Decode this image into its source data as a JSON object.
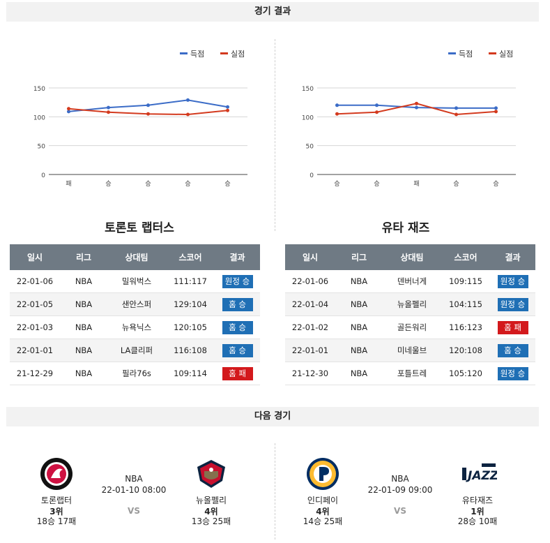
{
  "results_header": "경기 결과",
  "next_header": "다음 경기",
  "legend": {
    "score": "득점",
    "conceded": "실점"
  },
  "colors": {
    "score": "#3b6cc7",
    "conceded": "#d33a1e",
    "win": "#1f6fb5",
    "lose": "#d3191c"
  },
  "chart_data": [
    {
      "type": "line",
      "categories": [
        "패",
        "승",
        "승",
        "승",
        "승"
      ],
      "series": [
        {
          "name": "득점",
          "values": [
            109,
            116,
            120,
            129,
            117
          ]
        },
        {
          "name": "실점",
          "values": [
            114,
            108,
            105,
            104,
            111
          ]
        }
      ],
      "yticks": [
        "0",
        "50",
        "100",
        "150"
      ],
      "ylim": [
        0,
        150
      ],
      "legend": "top-right",
      "grid": true
    },
    {
      "type": "line",
      "categories": [
        "승",
        "승",
        "패",
        "승",
        "승"
      ],
      "series": [
        {
          "name": "득점",
          "values": [
            120,
            120,
            116,
            115,
            115
          ]
        },
        {
          "name": "실점",
          "values": [
            105,
            108,
            123,
            104,
            109
          ]
        }
      ],
      "yticks": [
        "0",
        "50",
        "100",
        "150"
      ],
      "ylim": [
        0,
        150
      ],
      "legend": "top-right",
      "grid": true
    }
  ],
  "columns": [
    "일시",
    "리그",
    "상대팀",
    "스코어",
    "결과"
  ],
  "teams": [
    {
      "title": "토론토 랩터스",
      "rows": [
        {
          "date": "22-01-06",
          "league": "NBA",
          "opponent": "밀워벅스",
          "score": "111:117",
          "result": "원정 승",
          "win": true
        },
        {
          "date": "22-01-05",
          "league": "NBA",
          "opponent": "샌안스퍼",
          "score": "129:104",
          "result": "홈 승",
          "win": true
        },
        {
          "date": "22-01-03",
          "league": "NBA",
          "opponent": "뉴욕닉스",
          "score": "120:105",
          "result": "홈 승",
          "win": true
        },
        {
          "date": "22-01-01",
          "league": "NBA",
          "opponent": "LA클리퍼",
          "score": "116:108",
          "result": "홈 승",
          "win": true
        },
        {
          "date": "21-12-29",
          "league": "NBA",
          "opponent": "필라76s",
          "score": "109:114",
          "result": "홈 패",
          "win": false
        }
      ]
    },
    {
      "title": "유타 재즈",
      "rows": [
        {
          "date": "22-01-06",
          "league": "NBA",
          "opponent": "덴버너게",
          "score": "109:115",
          "result": "원정 승",
          "win": true
        },
        {
          "date": "22-01-04",
          "league": "NBA",
          "opponent": "뉴올펠리",
          "score": "104:115",
          "result": "원정 승",
          "win": true
        },
        {
          "date": "22-01-02",
          "league": "NBA",
          "opponent": "골든워리",
          "score": "116:123",
          "result": "홈 패",
          "win": false
        },
        {
          "date": "22-01-01",
          "league": "NBA",
          "opponent": "미네울브",
          "score": "120:108",
          "result": "홈 승",
          "win": true
        },
        {
          "date": "21-12-30",
          "league": "NBA",
          "opponent": "포틀트레",
          "score": "105:120",
          "result": "원정 승",
          "win": true
        }
      ]
    }
  ],
  "next_games": [
    {
      "league": "NBA",
      "time": "22-01-10 08:00",
      "vs": "VS",
      "home": {
        "name": "토론랩터",
        "rank": "3위",
        "record": "18승 17패",
        "logo_text": "TORONTO RAPTORS"
      },
      "away": {
        "name": "뉴올펠리",
        "rank": "4위",
        "record": "13승 25패",
        "logo_text": "NEW ORLEANS"
      }
    },
    {
      "league": "NBA",
      "time": "22-01-09 09:00",
      "vs": "VS",
      "home": {
        "name": "인디페이",
        "rank": "4위",
        "record": "14승 25패",
        "logo_text": "PACERS"
      },
      "away": {
        "name": "유타재즈",
        "rank": "1위",
        "record": "28승 10패",
        "logo_text": "UTAH JAZZ"
      }
    }
  ]
}
